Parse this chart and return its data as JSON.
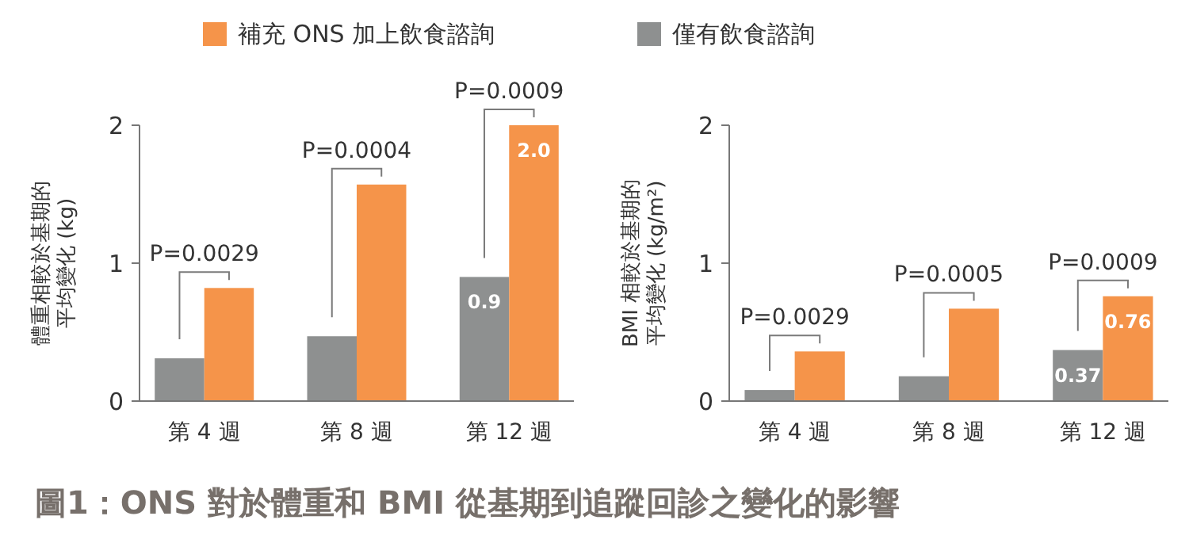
{
  "chart_data": [
    {
      "type": "bar",
      "title": "圖1：ONS 對於體重和 BMI 從基期到追蹤回診之變化的影響",
      "ylabel": "體重相較於基期的平均變化 (kg)",
      "categories": [
        "第 4 週",
        "第 8 週",
        "第 12 週"
      ],
      "ylim": [
        0,
        2
      ],
      "yticks": [
        0,
        1,
        2
      ],
      "legend": "top",
      "annotations": [
        "P=0.0029",
        "P=0.0004",
        "P=0.0009"
      ],
      "series": [
        {
          "name": "僅有飲食諮詢",
          "color": "#8e9090",
          "values": [
            0.31,
            0.47,
            0.9
          ],
          "value_labels": [
            null,
            null,
            "0.9"
          ]
        },
        {
          "name": "補充 ONS 加上飲食諮詢",
          "color": "#f5944a",
          "values": [
            0.82,
            1.57,
            2.0
          ],
          "value_labels": [
            null,
            null,
            "2.0"
          ]
        }
      ]
    },
    {
      "type": "bar",
      "ylabel": "BMI 相較於基期的平均變化 (kg/m²)",
      "categories": [
        "第 4 週",
        "第 8 週",
        "第 12 週"
      ],
      "ylim": [
        0,
        2
      ],
      "yticks": [
        0,
        1,
        2
      ],
      "annotations": [
        "P=0.0029",
        "P=0.0005",
        "P=0.0009"
      ],
      "series": [
        {
          "color": "#8e9090",
          "values": [
            0.08,
            0.18,
            0.37
          ],
          "value_labels": [
            null,
            null,
            "0.37"
          ]
        },
        {
          "color": "#f5944a",
          "values": [
            0.36,
            0.67,
            0.76
          ],
          "value_labels": [
            null,
            null,
            "0.76"
          ]
        }
      ]
    }
  ]
}
